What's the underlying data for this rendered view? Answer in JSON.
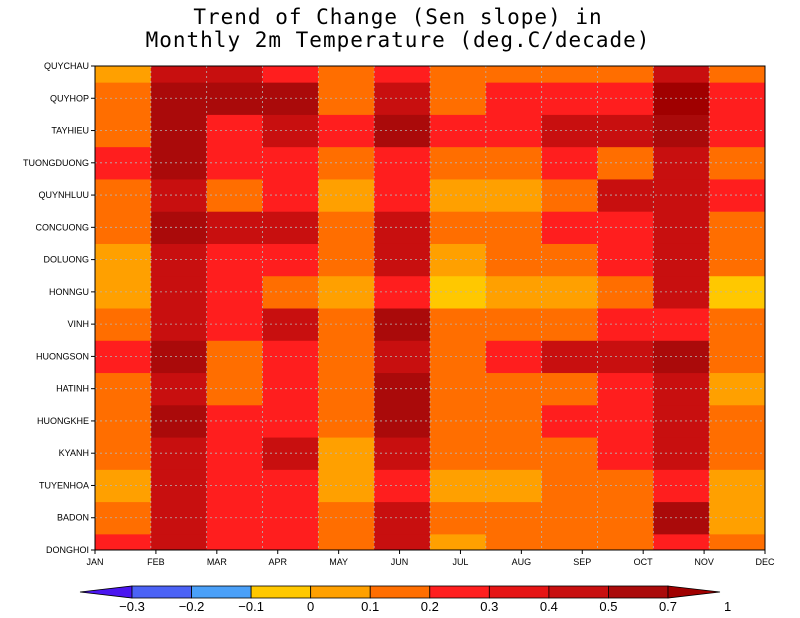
{
  "chart_data": {
    "type": "heatmap",
    "title_line1": "Trend of Change (Sen slope) in",
    "title_line2": "Monthly 2m Temperature (deg.C/decade)",
    "x_tick_labels": [
      "JAN",
      "FEB",
      "MAR",
      "APR",
      "MAY",
      "JUN",
      "JUL",
      "AUG",
      "SEP",
      "OCT",
      "NOV",
      "DEC"
    ],
    "y_tick_labels": [
      "QUYCHAU",
      "QUYHOP",
      "TAYHIEU",
      "TUONGDUONG",
      "QUYNHLUU",
      "CONCUONG",
      "DOLUONG",
      "HONNGU",
      "VINH",
      "HUONGSON",
      "HATINH",
      "HUONGKHE",
      "KYANH",
      "TUYENHOA",
      "BADON",
      "DONGHOI"
    ],
    "grid": true,
    "colorbar": {
      "position": "bottom",
      "colors": [
        "#4b16f0",
        "#4b62f5",
        "#4aa0f8",
        "#ffc800",
        "#ffa000",
        "#ff6e00",
        "#ff1e1e",
        "#e61414",
        "#c80f0f",
        "#aa0a0a",
        "#a00000"
      ],
      "tick_labels": [
        "-0.3",
        "-0.2",
        "-0.1",
        "0",
        "0.1",
        "0.2",
        "0.3",
        "0.4",
        "0.5",
        "0.7",
        "1"
      ]
    },
    "rows": [
      {
        "station": "DONGHOI",
        "values": [
          0.25,
          0.45,
          0.25,
          0.25,
          0.15,
          0.45,
          0.05,
          0.15,
          0.15,
          0.15,
          0.25,
          0.15
        ]
      },
      {
        "station": "BADON",
        "values": [
          0.15,
          0.45,
          0.25,
          0.25,
          0.15,
          0.45,
          0.15,
          0.15,
          0.15,
          0.15,
          0.55,
          0.05
        ]
      },
      {
        "station": "TUYENHOA",
        "values": [
          0.05,
          0.45,
          0.25,
          0.25,
          0.05,
          0.25,
          0.05,
          0.05,
          0.15,
          0.15,
          0.25,
          0.05
        ]
      },
      {
        "station": "KYANH",
        "values": [
          0.15,
          0.45,
          0.25,
          0.45,
          0.05,
          0.45,
          0.15,
          0.15,
          0.15,
          0.25,
          0.45,
          0.15
        ]
      },
      {
        "station": "HUONGKHE",
        "values": [
          0.15,
          0.55,
          0.25,
          0.25,
          0.15,
          0.55,
          0.15,
          0.15,
          0.25,
          0.25,
          0.45,
          0.15
        ]
      },
      {
        "station": "HATINH",
        "values": [
          0.15,
          0.45,
          0.15,
          0.25,
          0.15,
          0.55,
          0.15,
          0.15,
          0.15,
          0.25,
          0.45,
          0.05
        ]
      },
      {
        "station": "HUONGSON",
        "values": [
          0.25,
          0.55,
          0.15,
          0.25,
          0.15,
          0.45,
          0.15,
          0.25,
          0.45,
          0.45,
          0.55,
          0.15
        ]
      },
      {
        "station": "VINH",
        "values": [
          0.15,
          0.45,
          0.25,
          0.45,
          0.15,
          0.55,
          0.15,
          0.15,
          0.15,
          0.25,
          0.25,
          0.15
        ]
      },
      {
        "station": "HONNGU",
        "values": [
          0.05,
          0.45,
          0.25,
          0.15,
          0.05,
          0.25,
          -0.05,
          0.05,
          0.05,
          0.15,
          0.45,
          -0.05
        ]
      },
      {
        "station": "DOLUONG",
        "values": [
          0.05,
          0.45,
          0.25,
          0.25,
          0.15,
          0.45,
          0.05,
          0.15,
          0.15,
          0.25,
          0.45,
          0.15
        ]
      },
      {
        "station": "CONCUONG",
        "values": [
          0.15,
          0.55,
          0.45,
          0.45,
          0.15,
          0.45,
          0.15,
          0.15,
          0.25,
          0.25,
          0.45,
          0.15
        ]
      },
      {
        "station": "QUYNHLUU",
        "values": [
          0.15,
          0.45,
          0.15,
          0.25,
          0.05,
          0.25,
          0.05,
          0.05,
          0.15,
          0.45,
          0.45,
          0.25
        ]
      },
      {
        "station": "TUONGDUONG",
        "values": [
          0.25,
          0.55,
          0.25,
          0.25,
          0.15,
          0.25,
          0.15,
          0.15,
          0.25,
          0.15,
          0.45,
          0.15
        ]
      },
      {
        "station": "TAYHIEU",
        "values": [
          0.15,
          0.55,
          0.25,
          0.45,
          0.25,
          0.55,
          0.25,
          0.25,
          0.45,
          0.45,
          0.55,
          0.25
        ]
      },
      {
        "station": "QUYHOP",
        "values": [
          0.15,
          0.55,
          0.55,
          0.55,
          0.15,
          0.45,
          0.15,
          0.25,
          0.25,
          0.25,
          0.85,
          0.25
        ]
      },
      {
        "station": "QUYCHAU",
        "values": [
          0.05,
          0.45,
          0.45,
          0.25,
          0.15,
          0.25,
          0.15,
          0.15,
          0.15,
          0.15,
          0.45,
          0.15
        ]
      }
    ]
  }
}
